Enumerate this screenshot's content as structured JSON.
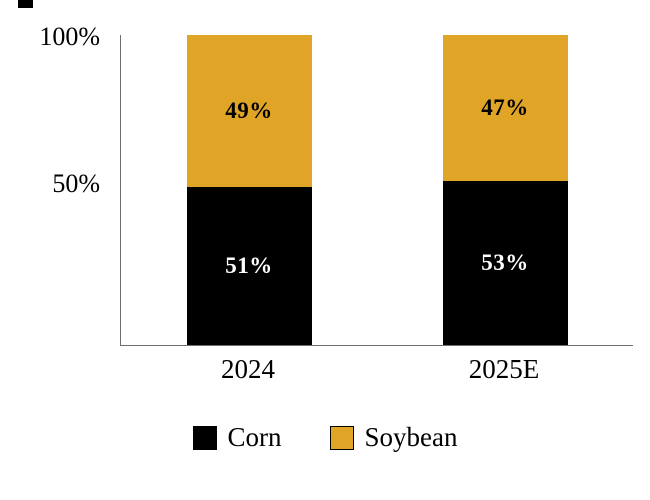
{
  "chart_data": {
    "type": "bar",
    "subtype": "stacked-100-percent-column",
    "title": "",
    "categories": [
      "2024",
      "2025E"
    ],
    "series": [
      {
        "name": "Corn",
        "color": "#000000",
        "label_color": "#ffffff",
        "values": [
          51,
          53
        ]
      },
      {
        "name": "Soybean",
        "color": "#E0A526",
        "label_color": "#000000",
        "values": [
          49,
          47
        ]
      }
    ],
    "value_suffix": "%",
    "y_ticks": [
      "100%",
      "50%"
    ],
    "ylim": [
      0,
      100
    ],
    "grid": false,
    "legend_position": "bottom"
  }
}
